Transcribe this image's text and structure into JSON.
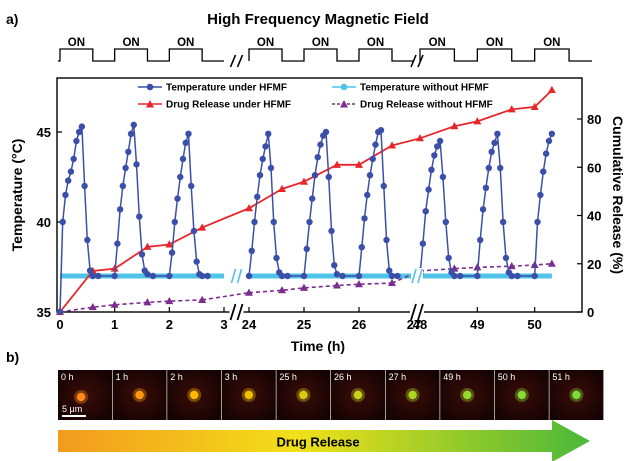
{
  "panel_a_label": "a)",
  "panel_b_label": "b)",
  "field_title": "High Frequency Magnetic Field",
  "on_label": "ON",
  "legend": {
    "temp_hfmf": "Temperature under HFMF",
    "temp_no_hfmf": "Temperature without HFMF",
    "release_hfmf": "Drug Release under HFMF",
    "release_no_hfmf": "Drug Release without HFMF"
  },
  "colors": {
    "temp_hfmf": "#3c4fa8",
    "temp_no_hfmf": "#4fc3e8",
    "release_hfmf": "#e8262a",
    "release_no_hfmf": "#7b2d8e"
  },
  "chart_data": {
    "type": "line",
    "xlabel": "Time (h)",
    "ylabel_left": "Temperature (°C)",
    "ylabel_right": "Cumulative Release (%)",
    "x_ticks": [
      "0",
      "1",
      "2",
      "3",
      "24",
      "25",
      "26",
      "27",
      "48",
      "49",
      "50"
    ],
    "y_left_ticks": [
      "35",
      "40",
      "45"
    ],
    "y_left_range": [
      35,
      48
    ],
    "y_right_ticks": [
      "0",
      "20",
      "40",
      "60",
      "80"
    ],
    "y_right_range": [
      0,
      97
    ],
    "axis_breaks": [
      "3-24",
      "27-48"
    ],
    "series": [
      {
        "name": "Temperature under HFMF",
        "axis": "left",
        "x": [
          0,
          0.05,
          0.1,
          0.15,
          0.2,
          0.25,
          0.3,
          0.35,
          0.4,
          0.45,
          0.5,
          0.55,
          0.6,
          0.7,
          1.0,
          1.05,
          1.1,
          1.15,
          1.2,
          1.25,
          1.3,
          1.35,
          1.4,
          1.45,
          1.5,
          1.55,
          1.6,
          1.7,
          2.0,
          2.05,
          2.1,
          2.15,
          2.2,
          2.25,
          2.3,
          2.35,
          2.4,
          2.45,
          2.5,
          2.55,
          2.6,
          2.7,
          24.0,
          24.05,
          24.1,
          24.15,
          24.2,
          24.25,
          24.3,
          24.35,
          24.4,
          24.45,
          24.5,
          24.55,
          24.6,
          24.7,
          25.0,
          25.05,
          25.1,
          25.15,
          25.2,
          25.25,
          25.3,
          25.35,
          25.4,
          25.45,
          25.5,
          25.55,
          25.6,
          25.7,
          26.0,
          26.05,
          26.1,
          26.15,
          26.2,
          26.25,
          26.3,
          26.35,
          26.4,
          26.45,
          26.5,
          26.55,
          26.6,
          26.7,
          48.0,
          48.05,
          48.1,
          48.15,
          48.2,
          48.25,
          48.3,
          48.35,
          48.4,
          48.45,
          48.5,
          48.55,
          48.6,
          48.7,
          49.0,
          49.05,
          49.1,
          49.15,
          49.2,
          49.25,
          49.3,
          49.35,
          49.4,
          49.45,
          49.5,
          49.55,
          49.6,
          49.7,
          50.0,
          50.05,
          50.1,
          50.15,
          50.2,
          50.25,
          50.3
        ],
        "y": [
          35.0,
          40.0,
          41.5,
          42.3,
          42.8,
          43.5,
          44.5,
          45.0,
          45.3,
          42.0,
          39.0,
          37.3,
          37.0,
          37.0,
          37.0,
          38.8,
          40.7,
          42.0,
          43.0,
          43.9,
          44.9,
          45.4,
          43.2,
          40.3,
          38.2,
          37.3,
          37.1,
          37.0,
          37.0,
          38.3,
          40.0,
          41.3,
          42.5,
          43.5,
          44.4,
          44.9,
          42.0,
          39.5,
          37.8,
          37.1,
          37.0,
          37.0,
          37.0,
          38.4,
          40.0,
          41.4,
          42.6,
          43.5,
          44.2,
          44.9,
          43.0,
          40.0,
          38.0,
          37.2,
          37.0,
          37.0,
          37.0,
          38.5,
          40.0,
          41.3,
          42.6,
          43.6,
          44.3,
          44.8,
          45.0,
          42.5,
          39.5,
          37.6,
          37.1,
          37.0,
          37.0,
          38.6,
          40.2,
          41.5,
          42.6,
          43.5,
          44.3,
          45.0,
          45.1,
          42.0,
          39.0,
          37.3,
          37.0,
          37.0,
          37.0,
          38.8,
          40.6,
          41.8,
          42.9,
          43.7,
          44.2,
          44.5,
          42.5,
          40.0,
          38.0,
          37.2,
          37.0,
          37.0,
          37.0,
          39.0,
          40.7,
          41.9,
          43.0,
          43.9,
          44.4,
          44.9,
          43.0,
          40.0,
          38.0,
          37.2,
          37.0,
          37.0,
          37.0,
          40.0,
          41.5,
          42.8,
          43.8,
          44.5,
          44.9
        ]
      },
      {
        "name": "Temperature without HFMF",
        "axis": "left",
        "x": [
          0,
          3,
          24,
          27,
          48,
          50.3
        ],
        "y": [
          37.0,
          37.0,
          37.0,
          37.0,
          37.0,
          37.0
        ]
      },
      {
        "name": "Drug Release under HFMF",
        "axis": "right",
        "x": [
          0,
          0.6,
          1.0,
          1.6,
          2.0,
          2.6,
          24.0,
          24.6,
          25.0,
          25.6,
          26.0,
          26.6,
          48.0,
          48.6,
          49.0,
          49.6,
          50.0,
          50.3
        ],
        "y": [
          0,
          17,
          18,
          27,
          28,
          35,
          43,
          51,
          54,
          61,
          61,
          69,
          72,
          77,
          79,
          84,
          85,
          92
        ]
      },
      {
        "name": "Drug Release without HFMF",
        "axis": "right",
        "x": [
          0,
          0.6,
          1.0,
          1.6,
          2.0,
          2.6,
          24.0,
          24.6,
          25.0,
          25.6,
          26.0,
          26.6,
          48.0,
          48.6,
          49.0,
          49.6,
          50.0,
          50.3
        ],
        "y": [
          0,
          2,
          3,
          4,
          4.5,
          5,
          8,
          9,
          10,
          11,
          11.5,
          12,
          17,
          18,
          18.5,
          19,
          19.5,
          20
        ]
      }
    ]
  },
  "timelapse": {
    "frames": [
      {
        "label": "0 h",
        "color": "#ff8a1a"
      },
      {
        "label": "1 h",
        "color": "#ff9a10"
      },
      {
        "label": "2 h",
        "color": "#ffb800"
      },
      {
        "label": "3 h",
        "color": "#f2c000"
      },
      {
        "label": "25 h",
        "color": "#d8cc12"
      },
      {
        "label": "26 h",
        "color": "#c6d21a"
      },
      {
        "label": "27 h",
        "color": "#aed624"
      },
      {
        "label": "49 h",
        "color": "#98d92e"
      },
      {
        "label": "50 h",
        "color": "#88dc34"
      },
      {
        "label": "51 h",
        "color": "#7cdc38"
      }
    ],
    "scale_bar": "5 μm",
    "arrow_label": "Drug Release"
  }
}
